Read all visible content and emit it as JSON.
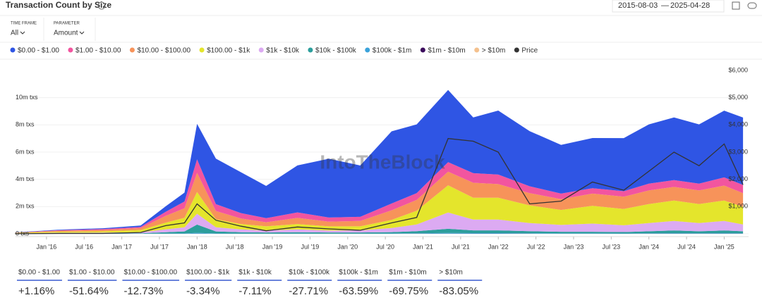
{
  "header": {
    "title": "Transaction Count by Size",
    "time_frame_label": "TIME FRAME",
    "time_frame": "All",
    "parameter_label": "PARAMETER",
    "parameter": "Amount"
  },
  "chart_data": {
    "type": "stacked-area",
    "watermark": "IntoTheBlock",
    "xlim": [
      "2015-08-03",
      "2025-04-28"
    ],
    "x": [
      "2015-08",
      "2016-03",
      "2016-10",
      "2017-04",
      "2017-08",
      "2017-11",
      "2018-01",
      "2018-04",
      "2018-08",
      "2018-12",
      "2019-05",
      "2019-10",
      "2020-03",
      "2020-08",
      "2020-12",
      "2021-05",
      "2021-09",
      "2022-01",
      "2022-06",
      "2022-11",
      "2023-04",
      "2023-09",
      "2024-01",
      "2024-05",
      "2024-09",
      "2025-01",
      "2025-04"
    ],
    "xticks": [
      {
        "value": "2016-01",
        "label": "Jan '16"
      },
      {
        "value": "2016-07",
        "label": "Jul '16"
      },
      {
        "value": "2017-01",
        "label": "Jan '17"
      },
      {
        "value": "2017-07",
        "label": "Jul '17"
      },
      {
        "value": "2018-01",
        "label": "Jan '18"
      },
      {
        "value": "2018-07",
        "label": "Jul '18"
      },
      {
        "value": "2019-01",
        "label": "Jan '19"
      },
      {
        "value": "2019-07",
        "label": "Jul '19"
      },
      {
        "value": "2020-01",
        "label": "Jan '20"
      },
      {
        "value": "2020-07",
        "label": "Jul '20"
      },
      {
        "value": "2021-01",
        "label": "Jan '21"
      },
      {
        "value": "2021-07",
        "label": "Jul '21"
      },
      {
        "value": "2022-01",
        "label": "Jan '22"
      },
      {
        "value": "2022-07",
        "label": "Jul '22"
      },
      {
        "value": "2023-01",
        "label": "Jan '23"
      },
      {
        "value": "2023-07",
        "label": "Jul '23"
      },
      {
        "value": "2024-01",
        "label": "Jan '24"
      },
      {
        "value": "2024-07",
        "label": "Jul '24"
      },
      {
        "value": "2025-01",
        "label": "Jan '25"
      }
    ],
    "ylim": [
      0,
      12000000
    ],
    "yticks": [
      {
        "value": 0,
        "label": "0 txs"
      },
      {
        "value": 2000000,
        "label": "2m txs"
      },
      {
        "value": 4000000,
        "label": "4m txs"
      },
      {
        "value": 6000000,
        "label": "6m txs"
      },
      {
        "value": 8000000,
        "label": "8m txs"
      },
      {
        "value": 10000000,
        "label": "10m txs"
      }
    ],
    "y2lim": [
      0,
      6000
    ],
    "y2ticks": [
      {
        "value": 1000,
        "label": "$1,000"
      },
      {
        "value": 2000,
        "label": "$2,000"
      },
      {
        "value": 3000,
        "label": "$3,000"
      },
      {
        "value": 4000,
        "label": "$4,000"
      },
      {
        "value": 5000,
        "label": "$5,000"
      },
      {
        "value": 6000,
        "label": "$6,000"
      }
    ],
    "grid": true,
    "series": [
      {
        "name": "$0.00 - $1.00",
        "color": "#2f55e4",
        "values": [
          10000,
          40000,
          60000,
          100000,
          400000,
          650000,
          2600000,
          3350000,
          3000000,
          2370000,
          3450000,
          4320000,
          3770000,
          5300000,
          5050000,
          5300000,
          4100000,
          4700000,
          4050000,
          3580000,
          3680000,
          3900000,
          4350000,
          4600000,
          4350000,
          4900000,
          4950000
        ]
      },
      {
        "name": "$1.00 - $10.00",
        "color": "#f2559f",
        "values": [
          10000,
          40000,
          60000,
          90000,
          300000,
          500000,
          1000000,
          500000,
          400000,
          300000,
          400000,
          300000,
          300000,
          500000,
          500000,
          700000,
          700000,
          700000,
          500000,
          400000,
          400000,
          400000,
          500000,
          500000,
          500000,
          600000,
          600000
        ]
      },
      {
        "name": "$10.00 - $100.00",
        "color": "#f7935a",
        "values": [
          20000,
          70000,
          100000,
          150000,
          500000,
          700000,
          1400000,
          600000,
          400000,
          300000,
          450000,
          350000,
          400000,
          700000,
          800000,
          1000000,
          1100000,
          1000000,
          900000,
          800000,
          900000,
          900000,
          1000000,
          1000000,
          1000000,
          1100000,
          1000000
        ]
      },
      {
        "name": "$100.00 - $1k",
        "color": "#e4e52c",
        "values": [
          30000,
          80000,
          100000,
          150000,
          500000,
          700000,
          1600000,
          600000,
          400000,
          300000,
          400000,
          300000,
          300000,
          600000,
          1000000,
          2000000,
          1600000,
          1600000,
          1300000,
          1100000,
          1300000,
          1200000,
          1400000,
          1500000,
          1400000,
          1500000,
          1300000
        ]
      },
      {
        "name": "$1k - $10k",
        "color": "#dcaaf2",
        "values": [
          20000,
          50000,
          60000,
          80000,
          200000,
          300000,
          800000,
          300000,
          200000,
          150000,
          200000,
          150000,
          150000,
          300000,
          500000,
          1200000,
          800000,
          800000,
          600000,
          500000,
          600000,
          500000,
          600000,
          700000,
          600000,
          700000,
          500000
        ]
      },
      {
        "name": "$10k - $100k",
        "color": "#2c9e9c",
        "values": [
          10000,
          20000,
          20000,
          30000,
          100000,
          150000,
          600000,
          150000,
          100000,
          80000,
          100000,
          80000,
          80000,
          100000,
          150000,
          300000,
          200000,
          200000,
          150000,
          120000,
          120000,
          100000,
          150000,
          200000,
          150000,
          200000,
          150000
        ]
      },
      {
        "name": "$100k - $1m",
        "color": "#3aa2da",
        "values": [
          2000,
          4000,
          5000,
          6000,
          15000,
          20000,
          60000,
          20000,
          15000,
          12000,
          15000,
          12000,
          12000,
          20000,
          30000,
          50000,
          40000,
          40000,
          30000,
          25000,
          25000,
          22000,
          30000,
          35000,
          30000,
          35000,
          30000
        ]
      },
      {
        "name": "$1m - $10m",
        "color": "#3b0b5c",
        "values": [
          500,
          1000,
          1000,
          1500,
          4000,
          5000,
          12000,
          5000,
          4000,
          3000,
          4000,
          3000,
          3000,
          5000,
          7000,
          12000,
          10000,
          10000,
          8000,
          6000,
          6000,
          5000,
          7000,
          8000,
          7000,
          8000,
          7000
        ]
      },
      {
        "name": "> $10m",
        "color": "#f4c18e",
        "values": [
          100,
          200,
          300,
          400,
          1000,
          1500,
          3000,
          1500,
          1000,
          800,
          1000,
          800,
          800,
          1200,
          2000,
          3000,
          2500,
          2500,
          2000,
          1500,
          1500,
          1200,
          1500,
          2000,
          1500,
          2000,
          1500
        ]
      },
      {
        "name": "Price",
        "color": "#333333",
        "axis": "y2",
        "values": [
          3,
          12,
          12,
          50,
          300,
          400,
          1100,
          500,
          280,
          110,
          250,
          180,
          130,
          400,
          600,
          3500,
          3400,
          3000,
          1100,
          1200,
          1900,
          1600,
          2300,
          3000,
          2500,
          3300,
          1800
        ]
      }
    ],
    "changes": [
      "+1.16%",
      "-51.64%",
      "-12.73%",
      "-3.34%",
      "-7.11%",
      "-27.71%",
      "-63.59%",
      "-69.75%",
      "-83.05%"
    ]
  }
}
